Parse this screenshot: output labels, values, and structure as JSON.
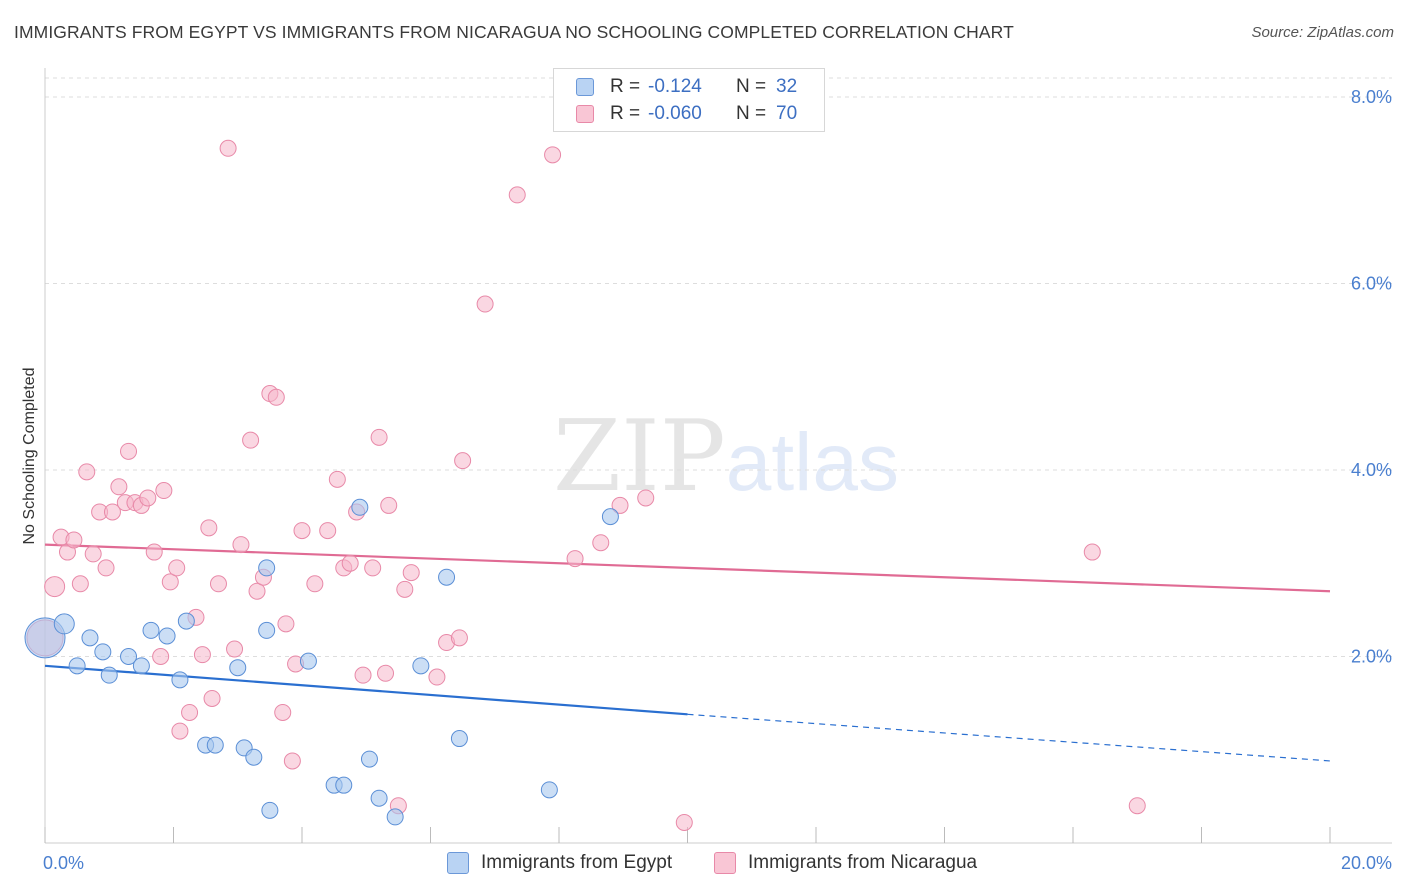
{
  "title": "IMMIGRANTS FROM EGYPT VS IMMIGRANTS FROM NICARAGUA NO SCHOOLING COMPLETED CORRELATION CHART",
  "source": "Source: ZipAtlas.com",
  "watermark": {
    "zip": "ZIP",
    "atlas": "atlas"
  },
  "legend": {
    "egypt": {
      "r_label": "R =",
      "r_value": "-0.124",
      "n_label": "N =",
      "n_value": "32"
    },
    "nicaragua": {
      "r_label": "R =",
      "r_value": "-0.060",
      "n_label": "N =",
      "n_value": "70"
    }
  },
  "colors": {
    "egypt_fill": "#a9c8ef",
    "egypt_stroke": "#5b8fd6",
    "egypt_line": "#2a6fd0",
    "nicaragua_fill": "#f6b7ca",
    "nicaragua_stroke": "#e889a8",
    "nicaragua_line": "#e06b94",
    "tick": "#4a7fcf",
    "grid": "#dddddd"
  },
  "chart_data": {
    "type": "scatter",
    "title": "IMMIGRANTS FROM EGYPT VS IMMIGRANTS FROM NICARAGUA NO SCHOOLING COMPLETED CORRELATION CHART",
    "xlabel": "",
    "ylabel": "No Schooling Completed",
    "xlim": [
      0,
      20
    ],
    "ylim": [
      0,
      8.3
    ],
    "x_ticks": [
      "0.0%",
      "20.0%"
    ],
    "y_ticks": [
      {
        "value": 2,
        "label": "2.0%"
      },
      {
        "value": 4,
        "label": "4.0%"
      },
      {
        "value": 6,
        "label": "6.0%"
      },
      {
        "value": 8,
        "label": "8.0%"
      }
    ],
    "grid": true,
    "legend_position": "top-center",
    "series": [
      {
        "name": "Immigrants from Egypt",
        "trend": {
          "x0": 0,
          "y0": 1.9,
          "x1": 10,
          "y1": 1.38,
          "dash_to_x": 20,
          "dash_to_y": 0.88
        },
        "points": [
          [
            0.0,
            2.2,
            20
          ],
          [
            0.3,
            2.35,
            10
          ],
          [
            0.5,
            1.9,
            8
          ],
          [
            0.7,
            2.2,
            8
          ],
          [
            0.9,
            2.05,
            8
          ],
          [
            1.0,
            1.8,
            8
          ],
          [
            1.3,
            2.0,
            8
          ],
          [
            1.5,
            1.9,
            8
          ],
          [
            1.65,
            2.28,
            8
          ],
          [
            1.9,
            2.22,
            8
          ],
          [
            2.1,
            1.75,
            8
          ],
          [
            2.2,
            2.38,
            8
          ],
          [
            2.5,
            1.05,
            8
          ],
          [
            2.65,
            1.05,
            8
          ],
          [
            3.0,
            1.88,
            8
          ],
          [
            3.1,
            1.02,
            8
          ],
          [
            3.25,
            0.92,
            8
          ],
          [
            3.45,
            2.28,
            8
          ],
          [
            3.45,
            2.95,
            8
          ],
          [
            3.5,
            0.35,
            8
          ],
          [
            4.1,
            1.95,
            8
          ],
          [
            4.5,
            0.62,
            8
          ],
          [
            4.65,
            0.62,
            8
          ],
          [
            4.9,
            3.6,
            8
          ],
          [
            5.05,
            0.9,
            8
          ],
          [
            5.2,
            0.48,
            8
          ],
          [
            5.45,
            0.28,
            8
          ],
          [
            6.25,
            2.85,
            8
          ],
          [
            5.85,
            1.9,
            8
          ],
          [
            6.45,
            1.12,
            8
          ],
          [
            7.85,
            0.57,
            8
          ],
          [
            8.8,
            3.5,
            8
          ]
        ]
      },
      {
        "name": "Immigrants from Nicaragua",
        "trend": {
          "x0": 0,
          "y0": 3.2,
          "x1": 20,
          "y1": 2.7
        },
        "points": [
          [
            0.0,
            2.2,
            18
          ],
          [
            0.15,
            2.75,
            10
          ],
          [
            0.25,
            3.28,
            8
          ],
          [
            0.35,
            3.12,
            8
          ],
          [
            0.45,
            3.25,
            8
          ],
          [
            0.55,
            2.78,
            8
          ],
          [
            0.65,
            3.98,
            8
          ],
          [
            0.75,
            3.1,
            8
          ],
          [
            0.85,
            3.55,
            8
          ],
          [
            0.95,
            2.95,
            8
          ],
          [
            1.05,
            3.55,
            8
          ],
          [
            1.15,
            3.82,
            8
          ],
          [
            1.25,
            3.65,
            8
          ],
          [
            1.3,
            4.2,
            8
          ],
          [
            1.4,
            3.65,
            8
          ],
          [
            1.5,
            3.62,
            8
          ],
          [
            1.6,
            3.7,
            8
          ],
          [
            1.7,
            3.12,
            8
          ],
          [
            1.8,
            2.0,
            8
          ],
          [
            1.85,
            3.78,
            8
          ],
          [
            1.95,
            2.8,
            8
          ],
          [
            2.05,
            2.95,
            8
          ],
          [
            2.1,
            1.2,
            8
          ],
          [
            2.25,
            1.4,
            8
          ],
          [
            2.35,
            2.42,
            8
          ],
          [
            2.45,
            2.02,
            8
          ],
          [
            2.55,
            3.38,
            8
          ],
          [
            2.6,
            1.55,
            8
          ],
          [
            2.7,
            2.78,
            8
          ],
          [
            2.85,
            7.45,
            8
          ],
          [
            2.95,
            2.08,
            8
          ],
          [
            3.05,
            3.2,
            8
          ],
          [
            3.2,
            4.32,
            8
          ],
          [
            3.3,
            2.7,
            8
          ],
          [
            3.4,
            2.85,
            8
          ],
          [
            3.5,
            4.82,
            8
          ],
          [
            3.6,
            4.78,
            8
          ],
          [
            3.7,
            1.4,
            8
          ],
          [
            3.75,
            2.35,
            8
          ],
          [
            3.85,
            0.88,
            8
          ],
          [
            3.9,
            1.92,
            8
          ],
          [
            4.0,
            3.35,
            8
          ],
          [
            4.2,
            2.78,
            8
          ],
          [
            4.4,
            3.35,
            8
          ],
          [
            4.55,
            3.9,
            8
          ],
          [
            4.65,
            2.95,
            8
          ],
          [
            4.75,
            3.0,
            8
          ],
          [
            4.85,
            3.55,
            8
          ],
          [
            4.95,
            1.8,
            8
          ],
          [
            5.1,
            2.95,
            8
          ],
          [
            5.2,
            4.35,
            8
          ],
          [
            5.3,
            1.82,
            8
          ],
          [
            5.35,
            3.62,
            8
          ],
          [
            5.5,
            0.4,
            8
          ],
          [
            5.6,
            2.72,
            8
          ],
          [
            5.7,
            2.9,
            8
          ],
          [
            6.1,
            1.78,
            8
          ],
          [
            6.25,
            2.15,
            8
          ],
          [
            6.45,
            2.2,
            8
          ],
          [
            6.5,
            4.1,
            8
          ],
          [
            6.85,
            5.78,
            8
          ],
          [
            7.35,
            6.95,
            8
          ],
          [
            7.9,
            7.38,
            8
          ],
          [
            8.25,
            3.05,
            8
          ],
          [
            8.65,
            3.22,
            8
          ],
          [
            8.95,
            3.62,
            8
          ],
          [
            9.35,
            3.7,
            8
          ],
          [
            9.95,
            0.22,
            8
          ],
          [
            16.3,
            3.12,
            8
          ],
          [
            17.0,
            0.4,
            8
          ]
        ]
      }
    ]
  }
}
